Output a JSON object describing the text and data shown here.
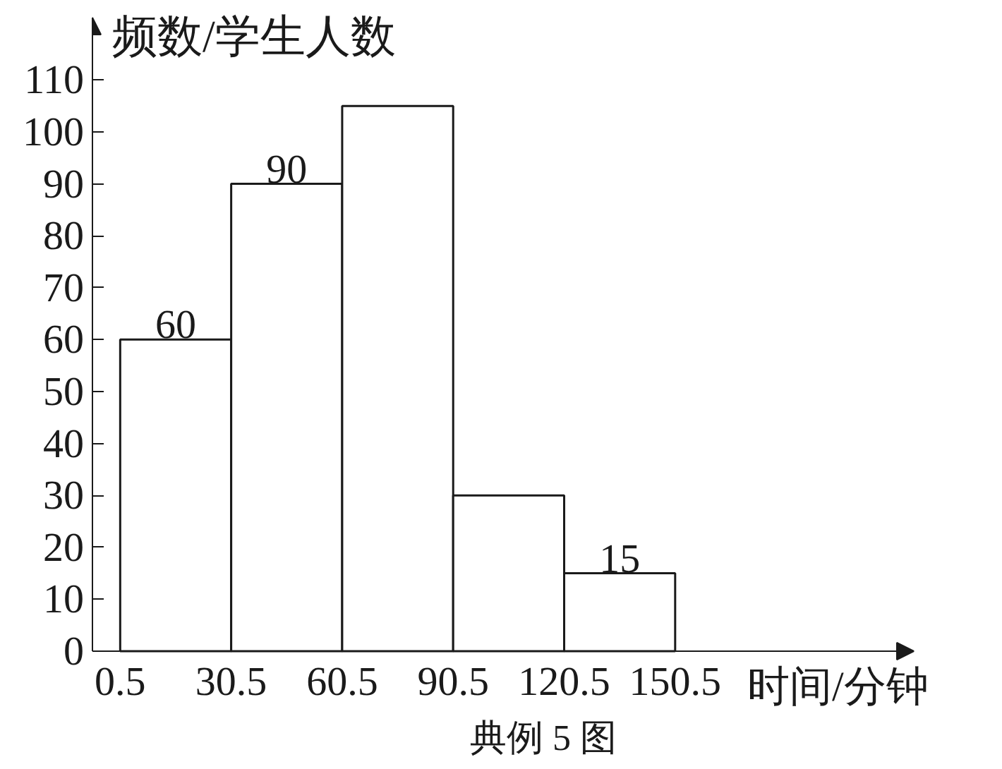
{
  "chart_data": {
    "type": "histogram",
    "ylabel": "频数/学生人数",
    "xlabel": "时间/分钟",
    "annotations": [
      "典例 5 图"
    ],
    "bins": [
      0.5,
      30.5,
      60.5,
      90.5,
      120.5,
      150.5
    ],
    "values": [
      60,
      90,
      105,
      30,
      15
    ],
    "value_labels": [
      "60",
      "90",
      null,
      null,
      "15"
    ],
    "color": "#ffffff",
    "xlim": [
      -7,
      215
    ],
    "ylim": [
      0,
      122
    ],
    "xticks": [
      0.5,
      30.5,
      60.5,
      90.5,
      120.5,
      150.5
    ],
    "yticks": [
      0,
      10,
      20,
      30,
      40,
      50,
      60,
      70,
      80,
      90,
      100,
      110
    ],
    "grid": false
  }
}
